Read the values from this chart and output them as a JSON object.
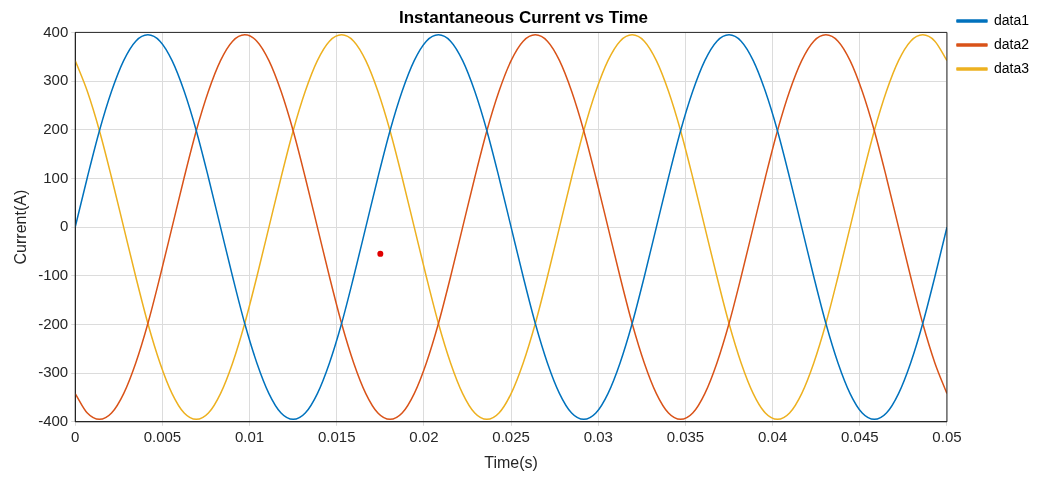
{
  "chart_data": {
    "type": "line",
    "title": "Instantaneous Current vs Time",
    "xlabel": "Time(s)",
    "ylabel": "Current(A)",
    "x": [
      0,
      0.000694,
      0.001389,
      0.002083,
      0.002778,
      0.003472,
      0.004167,
      0.004861,
      0.005556,
      0.00625,
      0.006944,
      0.007639,
      0.008333,
      0.009028,
      0.009722,
      0.010417,
      0.011111,
      0.011806,
      0.0125,
      0.013194,
      0.013889,
      0.014583,
      0.015278,
      0.015972,
      0.016667,
      0.017361,
      0.018056,
      0.01875,
      0.019444,
      0.020139,
      0.020833,
      0.021528,
      0.022222,
      0.022917,
      0.023611,
      0.024306,
      0.025,
      0.025694,
      0.026389,
      0.027083,
      0.027778,
      0.028472,
      0.029167,
      0.029861,
      0.030556,
      0.03125,
      0.031944,
      0.032639,
      0.033333,
      0.034028,
      0.034722,
      0.035417,
      0.036111,
      0.036806,
      0.0375,
      0.038194,
      0.038889,
      0.039583,
      0.040278,
      0.040972,
      0.041667,
      0.042361,
      0.043056,
      0.04375,
      0.044444,
      0.045139,
      0.045833,
      0.046528,
      0.047222,
      0.047917,
      0.048611,
      0.049306,
      0.05
    ],
    "series": [
      {
        "name": "data1",
        "color": "#0072bd",
        "values": [
          0,
          102,
          198,
          279,
          342,
          382,
          395,
          382,
          342,
          279,
          198,
          102,
          0,
          -102,
          -198,
          -279,
          -342,
          -382,
          -395,
          -382,
          -342,
          -279,
          -198,
          -102,
          0,
          102,
          198,
          279,
          342,
          382,
          395,
          382,
          342,
          279,
          198,
          102,
          0,
          -102,
          -198,
          -279,
          -342,
          -382,
          -395,
          -382,
          -342,
          -279,
          -198,
          -102,
          0,
          102,
          198,
          279,
          342,
          382,
          395,
          382,
          342,
          279,
          198,
          102,
          0,
          -102,
          -198,
          -279,
          -342,
          -382,
          -395,
          -382,
          -342,
          -279,
          -198,
          -102,
          0
        ]
      },
      {
        "name": "data2",
        "color": "#d95319",
        "values": [
          -342,
          -382,
          -395,
          -382,
          -342,
          -279,
          -198,
          -102,
          0,
          102,
          198,
          279,
          342,
          382,
          395,
          382,
          342,
          279,
          198,
          102,
          0,
          -102,
          -198,
          -279,
          -342,
          -382,
          -395,
          -382,
          -342,
          -279,
          -198,
          -102,
          0,
          102,
          198,
          279,
          342,
          382,
          395,
          382,
          342,
          279,
          198,
          102,
          0,
          -102,
          -198,
          -279,
          -342,
          -382,
          -395,
          -382,
          -342,
          -279,
          -198,
          -102,
          0,
          102,
          198,
          279,
          342,
          382,
          395,
          382,
          342,
          279,
          198,
          102,
          0,
          -102,
          -198,
          -279,
          -342
        ]
      },
      {
        "name": "data3",
        "color": "#edb120",
        "values": [
          342,
          279,
          198,
          102,
          0,
          -102,
          -198,
          -279,
          -342,
          -382,
          -395,
          -382,
          -342,
          -279,
          -198,
          -102,
          0,
          102,
          198,
          279,
          342,
          382,
          395,
          382,
          342,
          279,
          198,
          102,
          0,
          -102,
          -198,
          -279,
          -342,
          -382,
          -395,
          -382,
          -342,
          -279,
          -198,
          -102,
          0,
          102,
          198,
          279,
          342,
          382,
          395,
          382,
          342,
          279,
          198,
          102,
          0,
          -102,
          -198,
          -279,
          -342,
          -382,
          -395,
          -382,
          -342,
          -279,
          -198,
          -102,
          0,
          102,
          198,
          279,
          342,
          382,
          395,
          382,
          342
        ]
      },
      {
        "type": "scatter",
        "color": "#e00000",
        "marker": "circle",
        "x": [
          0.0175
        ],
        "values": [
          -55
        ]
      }
    ],
    "xlim": [
      0,
      0.05
    ],
    "xticks": [
      0,
      0.005,
      0.01,
      0.015,
      0.02,
      0.025,
      0.03,
      0.035,
      0.04,
      0.045,
      0.05
    ],
    "ylim": [
      -400,
      400
    ],
    "yticks": [
      -400,
      -300,
      -200,
      -100,
      0,
      100,
      200,
      300,
      400
    ],
    "grid": true,
    "legend": "top right",
    "marker": "none",
    "line_style": "solid"
  }
}
